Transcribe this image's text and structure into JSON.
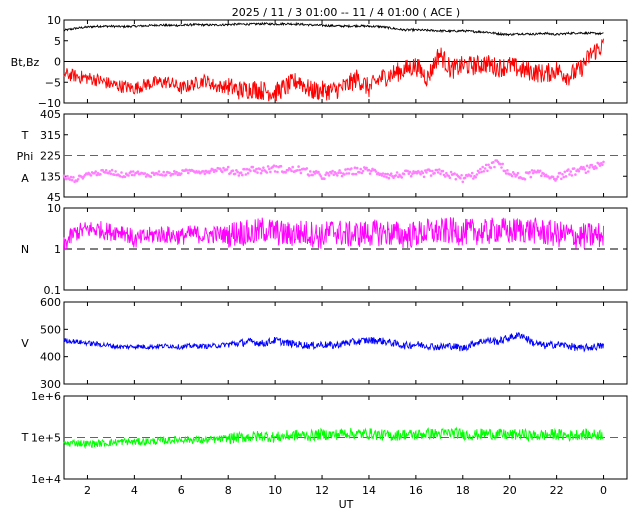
{
  "title": "2025 / 11 /  3   01:00 -- 11 /  4   01:00 ( ACE )",
  "x_axis": {
    "label": "UT",
    "ticks": [
      2,
      4,
      6,
      8,
      10,
      12,
      14,
      16,
      18,
      20,
      22,
      0
    ],
    "tick_hours": [
      2,
      4,
      6,
      8,
      10,
      12,
      14,
      16,
      18,
      20,
      22,
      24
    ],
    "range_hours": [
      1,
      25
    ]
  },
  "panels": [
    {
      "id": "mag",
      "ylabels": [
        "Bt,Bz"
      ],
      "ylim": [
        -10,
        10
      ],
      "ticks": [
        10,
        5,
        0,
        -5,
        -10
      ],
      "tick_labels": [
        "10",
        "5",
        "0",
        "−5",
        "−10"
      ],
      "ref_line": {
        "value": 0,
        "color": "#000000",
        "dashed": false
      },
      "series": [
        {
          "key": "Bt",
          "color": "#000000"
        },
        {
          "key": "Bz",
          "color": "#ff0000"
        }
      ]
    },
    {
      "id": "theta-phi",
      "ylabels": [
        "T",
        "Phi",
        "A"
      ],
      "ylim": [
        45,
        405
      ],
      "ticks": [
        405,
        315,
        225,
        135,
        45
      ],
      "tick_labels": [
        "405",
        "315",
        "225",
        "135",
        "45"
      ],
      "ref_line": {
        "value": 225,
        "color": "#a0522d",
        "dashed": true
      },
      "series": [
        {
          "key": "Phi",
          "color": "#ff80ff"
        },
        {
          "key": "Theta",
          "color": "#80c0ff"
        }
      ]
    },
    {
      "id": "density",
      "ylabels": [
        "N"
      ],
      "ylim": [
        0.1,
        10
      ],
      "log": true,
      "ticks": [
        10,
        1,
        0.1
      ],
      "tick_labels": [
        "10",
        "1",
        "0.1"
      ],
      "ref_line": {
        "value": 1,
        "color": "#000000",
        "dashed": true
      },
      "series": [
        {
          "key": "N",
          "color": "#ff00ff"
        }
      ]
    },
    {
      "id": "speed",
      "ylabels": [
        "V"
      ],
      "ylim": [
        300,
        600
      ],
      "ticks": [
        600,
        500,
        400,
        300
      ],
      "tick_labels": [
        "600",
        "500",
        "400",
        "300"
      ],
      "ref_line": null,
      "series": [
        {
          "key": "V",
          "color": "#0000ff"
        }
      ]
    },
    {
      "id": "temperature",
      "ylabels": [
        "T"
      ],
      "ylim": [
        10000,
        1000000
      ],
      "log": true,
      "ticks": [
        1000000,
        100000,
        10000
      ],
      "tick_labels": [
        "1e+6",
        "1e+5",
        "1e+4"
      ],
      "ref_line": {
        "value": 100000,
        "color": "#a0522d",
        "dashed": true
      },
      "series": [
        {
          "key": "T",
          "color": "#00ff00"
        }
      ]
    }
  ],
  "chart_data": {
    "type": "line",
    "title": "2025 / 11 /  3   01:00 -- 11 /  4   01:00 ( ACE )",
    "xlabel": "UT",
    "x_hours": [
      1,
      1.5,
      2,
      2.5,
      3,
      3.5,
      4,
      4.5,
      5,
      5.5,
      6,
      6.5,
      7,
      7.5,
      8,
      8.5,
      9,
      9.5,
      10,
      10.5,
      11,
      11.5,
      12,
      12.5,
      13,
      13.5,
      14,
      14.5,
      15,
      15.5,
      16,
      16.5,
      17,
      17.5,
      18,
      18.5,
      19,
      19.5,
      20,
      20.5,
      21,
      21.5,
      22,
      22.5,
      23,
      23.5,
      24
    ],
    "series": [
      {
        "name": "Bt",
        "panel": "mag",
        "values": [
          7.5,
          8,
          8.3,
          8.5,
          8.5,
          8.4,
          8.5,
          8.6,
          8.8,
          8.7,
          8.7,
          8.9,
          8.8,
          8.8,
          8.9,
          9,
          9,
          9.1,
          9,
          9.1,
          9,
          8.8,
          8.7,
          8.6,
          8.5,
          8.6,
          8.5,
          8.4,
          8,
          7.6,
          7.6,
          7.5,
          7.4,
          7.3,
          7.4,
          7.2,
          7.1,
          6.7,
          6.5,
          6.7,
          6.6,
          6.8,
          6.5,
          6.8,
          6.9,
          6.8,
          6.7
        ]
      },
      {
        "name": "Bz",
        "panel": "mag",
        "values": [
          -3,
          -3.5,
          -4,
          -4.5,
          -5.5,
          -6,
          -6.5,
          -5.5,
          -5,
          -5,
          -6.5,
          -5.5,
          -4.5,
          -6,
          -6,
          -7,
          -6.5,
          -7,
          -7.5,
          -6,
          -4.5,
          -7,
          -7,
          -7,
          -6,
          -4,
          -6.5,
          -4,
          -3,
          -2,
          -1,
          -4,
          2,
          -2,
          -1,
          -1,
          -0.5,
          -1.5,
          -1,
          -2,
          -2.5,
          -3,
          -2,
          -3.5,
          -2,
          2,
          4
        ]
      },
      {
        "name": "Phi",
        "panel": "theta-phi",
        "values": [
          130,
          120,
          145,
          150,
          155,
          140,
          150,
          140,
          148,
          145,
          150,
          160,
          155,
          165,
          160,
          150,
          165,
          160,
          170,
          160,
          165,
          150,
          135,
          145,
          150,
          160,
          160,
          150,
          135,
          145,
          140,
          150,
          150,
          140,
          125,
          140,
          170,
          195,
          145,
          130,
          150,
          140,
          130,
          150,
          160,
          170,
          195
        ]
      },
      {
        "name": "N",
        "panel": "density",
        "values": [
          1.2,
          2.5,
          3,
          3,
          2.6,
          2.8,
          1.6,
          2,
          2.3,
          2.2,
          2,
          2.4,
          2.1,
          2.3,
          2.2,
          2.6,
          2.3,
          3,
          2.6,
          2.2,
          2.5,
          2.4,
          2,
          2.8,
          2.2,
          2.3,
          2.4,
          2.5,
          2.4,
          2.1,
          2.3,
          2.6,
          2.6,
          2.8,
          2.5,
          2.7,
          2.5,
          3,
          2.6,
          3,
          2.8,
          2.5,
          2.3,
          2.2,
          2,
          2.1,
          2.2
        ]
      },
      {
        "name": "V",
        "panel": "speed",
        "values": [
          460,
          455,
          450,
          445,
          440,
          435,
          438,
          436,
          438,
          440,
          435,
          440,
          438,
          440,
          445,
          450,
          455,
          448,
          460,
          450,
          445,
          440,
          445,
          440,
          450,
          455,
          460,
          458,
          450,
          440,
          445,
          440,
          435,
          440,
          430,
          450,
          460,
          455,
          470,
          480,
          450,
          440,
          445,
          440,
          430,
          435,
          440
        ]
      },
      {
        "name": "T",
        "panel": "temperature",
        "values": [
          70000,
          75000,
          70000,
          72000,
          75000,
          80000,
          78000,
          80000,
          82000,
          85000,
          90000,
          88000,
          85000,
          90000,
          95000,
          100000,
          105000,
          110000,
          100000,
          110000,
          115000,
          110000,
          120000,
          115000,
          130000,
          120000,
          125000,
          115000,
          110000,
          120000,
          115000,
          125000,
          120000,
          130000,
          120000,
          115000,
          125000,
          120000,
          115000,
          120000,
          110000,
          115000,
          120000,
          110000,
          120000,
          115000,
          120000
        ]
      }
    ]
  }
}
